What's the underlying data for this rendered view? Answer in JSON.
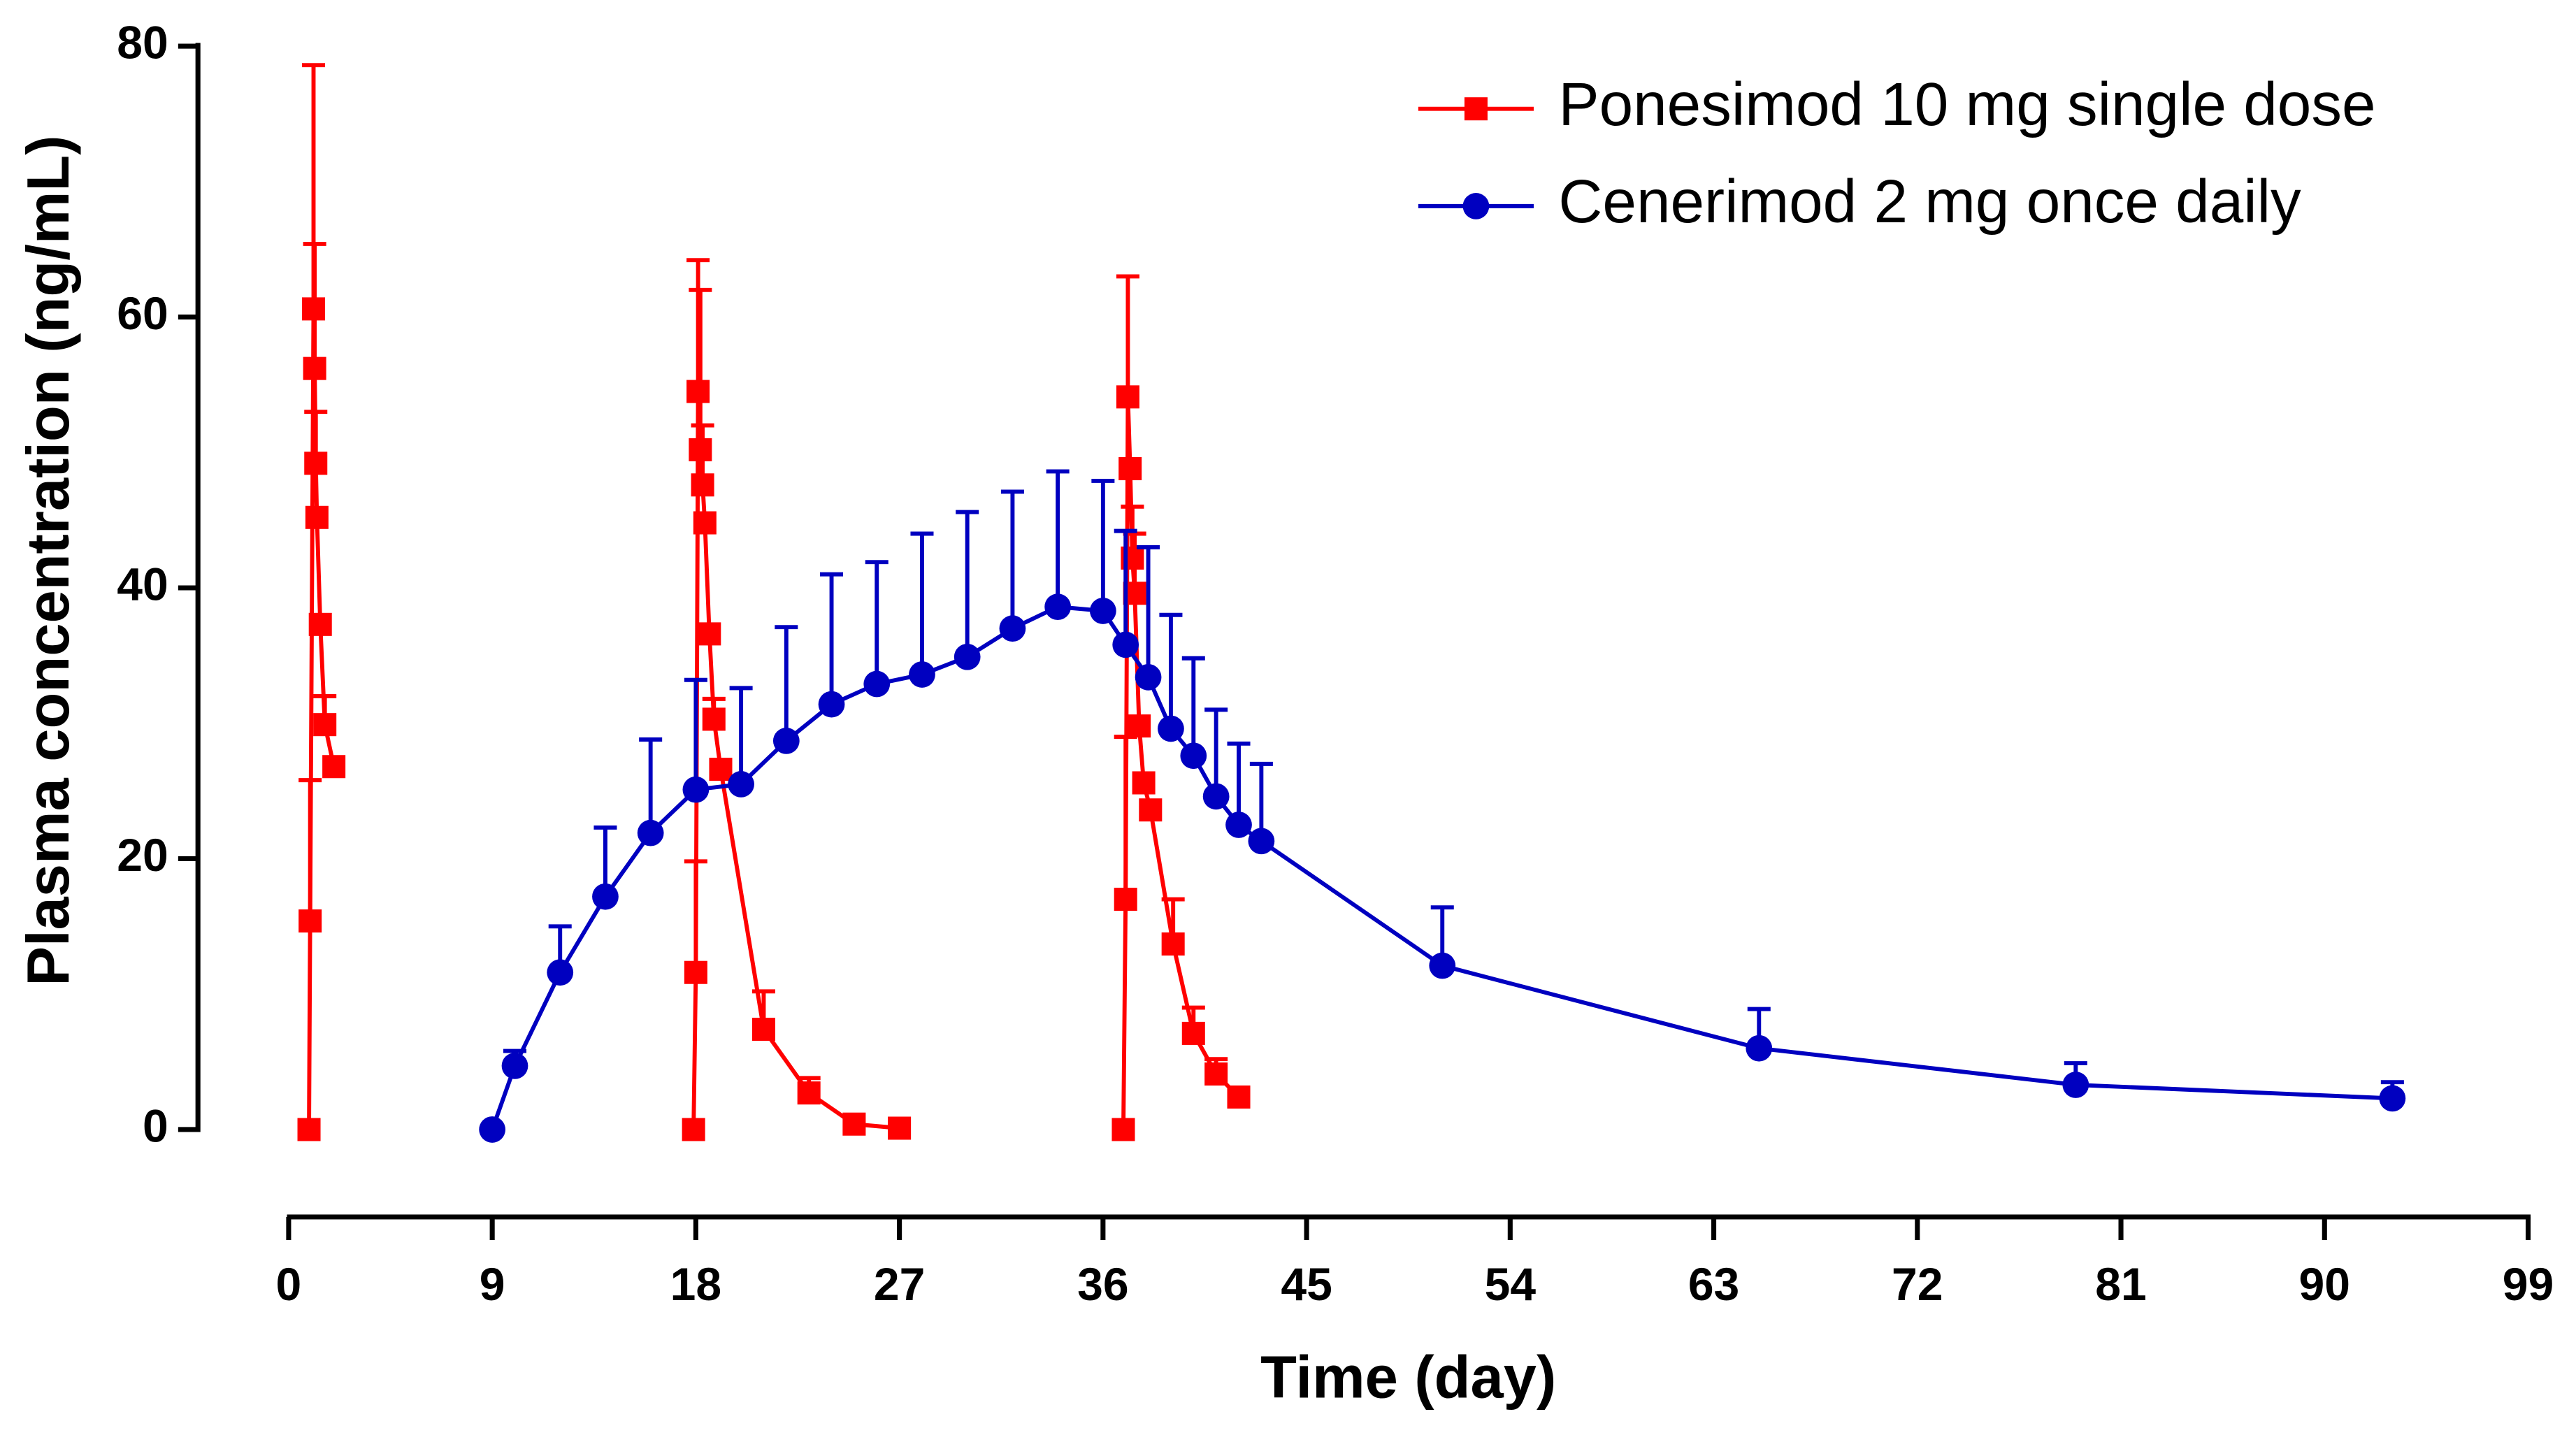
{
  "chart_data": {
    "type": "line",
    "xlabel": "Time (day)",
    "ylabel": "Plasma concentration (ng/mL)",
    "xlim": [
      0,
      99
    ],
    "xticks": [
      0,
      9,
      18,
      27,
      36,
      45,
      54,
      63,
      72,
      81,
      90,
      99
    ],
    "ylim": [
      0,
      80
    ],
    "yticks": [
      0,
      20,
      40,
      60,
      80
    ],
    "legend": "upper right",
    "series": [
      {
        "name": "Ponesimod 10 mg single dose",
        "color": "#ff0000",
        "marker": "square",
        "x": [
          0.9,
          0.95,
          1.1,
          1.15,
          1.2,
          1.25,
          1.4,
          1.6,
          2.0,
          10,
          17.9,
          18.0,
          18.1,
          18.2,
          18.3,
          18.4,
          18.6,
          18.8,
          19.1,
          21,
          23,
          25,
          27,
          32,
          36.9,
          37.0,
          37.1,
          37.2,
          37.3,
          37.4,
          37.6,
          37.8,
          38.1,
          39.1,
          40,
          41,
          42
        ],
        "values": [
          0,
          15.4,
          60.6,
          56.2,
          49.2,
          45.2,
          37.3,
          29.9,
          26.8,
          null,
          0,
          11.6,
          54.5,
          50.2,
          47.6,
          44.8,
          36.6,
          30.3,
          26.6,
          7.4,
          2.7,
          0.4,
          0.1,
          null,
          0,
          17.0,
          54.1,
          48.8,
          42.2,
          39.6,
          29.8,
          25.6,
          23.6,
          13.7,
          7.1,
          4.1,
          2.4
        ],
        "errors": [
          null,
          10.4,
          18.0,
          9.2,
          3.8,
          null,
          null,
          2.1,
          null,
          null,
          null,
          8.2,
          9.7,
          11.8,
          4.4,
          null,
          null,
          1.5,
          null,
          2.8,
          1.1,
          null,
          null,
          null,
          null,
          12.0,
          8.9,
          null,
          3.8,
          4.4,
          null,
          null,
          null,
          3.3,
          1.9,
          1.1,
          null
        ]
      },
      {
        "name": "Cenerimod 2 mg once daily",
        "color": "#0000c0",
        "marker": "circle",
        "x": [
          9,
          10,
          12,
          14,
          16,
          18,
          20,
          22,
          24,
          26,
          28,
          30,
          32,
          34,
          36,
          37,
          38,
          39,
          40,
          41,
          42,
          43,
          51,
          65,
          79,
          93
        ],
        "values": [
          0,
          4.7,
          11.6,
          17.2,
          21.9,
          25.1,
          25.5,
          28.7,
          31.4,
          32.9,
          33.6,
          34.9,
          37.0,
          38.6,
          38.3,
          35.8,
          33.4,
          29.6,
          27.6,
          24.6,
          22.5,
          21.3,
          12.1,
          6.0,
          3.3,
          2.3
        ],
        "errors": [
          null,
          1.1,
          3.4,
          5.1,
          6.9,
          8.1,
          7.1,
          8.4,
          9.6,
          9.0,
          10.4,
          10.7,
          10.1,
          10.0,
          9.6,
          8.4,
          9.6,
          8.4,
          7.2,
          6.4,
          6.0,
          5.7,
          4.3,
          2.9,
          1.6,
          1.2
        ]
      }
    ]
  }
}
